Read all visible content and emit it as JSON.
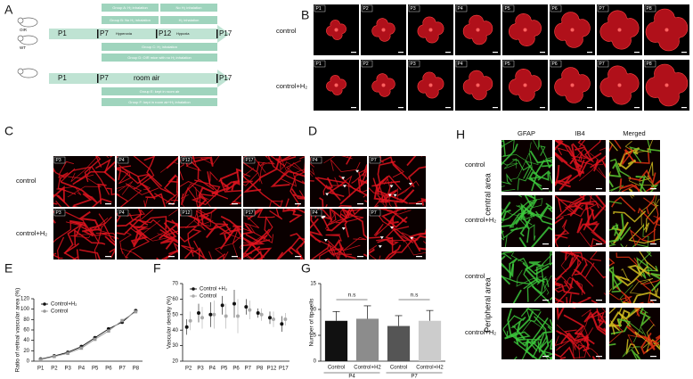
{
  "panel_labels": [
    "A",
    "B",
    "C",
    "D",
    "E",
    "F",
    "G",
    "H"
  ],
  "schematic": {
    "mice": [
      "OIR",
      "WT"
    ],
    "timeline1": [
      "P1",
      "P7",
      "P12",
      "P17"
    ],
    "phases": [
      "Hyperoxia",
      "Hypoxia"
    ],
    "boxes1": [
      "Group A: H₂ inhalation",
      "No H₂ inhalation",
      "Group B: No H₂ inhalation",
      "H₂ inhalation",
      "Group C: H₂ inhalation",
      "Group D: OIR mice with no H₂ inhalation"
    ],
    "timeline2": [
      "P1",
      "P7",
      "P17"
    ],
    "room_air": "room air",
    "boxes2": [
      "Group E: kept in room air",
      "Group F: kept in room air+H₂ inhalation"
    ]
  },
  "panel_b": {
    "rows": [
      "control",
      "control+H₂"
    ],
    "ages": [
      "P1",
      "P2",
      "P3",
      "P4",
      "P5",
      "P6",
      "P7",
      "P8"
    ]
  },
  "panel_c": {
    "rows": [
      "control",
      "control+H₂"
    ],
    "ages": [
      "P3",
      "P4",
      "P12",
      "P17"
    ]
  },
  "panel_d": {
    "ages": [
      "P4",
      "P7"
    ]
  },
  "panel_h": {
    "columns": [
      "GFAP",
      "IB4",
      "Merged"
    ],
    "rows": [
      "control",
      "control+H₂",
      "control",
      "control+H₂"
    ],
    "areas": [
      "central area",
      "Peripheral area"
    ]
  },
  "chart_data": [
    {
      "type": "line",
      "ylabel": "Ratio of retinal vascular area (%)",
      "categories": [
        "P1",
        "P2",
        "P3",
        "P4",
        "P5",
        "P6",
        "P7",
        "P8"
      ],
      "series": [
        {
          "name": "Control+H₂",
          "color": "#111111",
          "values": [
            4,
            10,
            17,
            28,
            45,
            62,
            75,
            97
          ]
        },
        {
          "name": "Control",
          "color": "#999999",
          "values": [
            3,
            9,
            15,
            25,
            42,
            58,
            78,
            95
          ]
        }
      ],
      "ylim": [
        0,
        120
      ],
      "yticks": [
        0,
        20,
        40,
        60,
        80,
        100,
        120
      ],
      "legend": "upper-left"
    },
    {
      "type": "dot",
      "ylabel": "Vascular density (%)",
      "categories": [
        "P2",
        "P3",
        "P4",
        "P5",
        "P6",
        "P7",
        "P8",
        "P12",
        "P17"
      ],
      "series": [
        {
          "name": "Control +H₂",
          "color": "#111111",
          "values": [
            42,
            51,
            50,
            56,
            57,
            55,
            51,
            48,
            44
          ],
          "errors": [
            5,
            6,
            8,
            6,
            9,
            5,
            3,
            4,
            5
          ]
        },
        {
          "name": "Control",
          "color": "#aaaaaa",
          "values": [
            46,
            48,
            50,
            49,
            49,
            53,
            50,
            47,
            47
          ],
          "errors": [
            6,
            7,
            9,
            8,
            11,
            6,
            4,
            5,
            4
          ]
        }
      ],
      "ylim": [
        20,
        70
      ],
      "yticks": [
        20,
        30,
        40,
        50,
        60,
        70
      ],
      "legend": "upper-left"
    },
    {
      "type": "bar",
      "ylabel": "Number of tip cells",
      "categories": [
        "Control",
        "Control+H2",
        "Control",
        "Control+H2"
      ],
      "values": [
        7.8,
        8.2,
        6.8,
        7.8
      ],
      "errors": [
        1.8,
        2.5,
        2.0,
        2.0
      ],
      "colors": [
        "#111111",
        "#8c8c8c",
        "#555555",
        "#cccccc"
      ],
      "groups": [
        "P4",
        "P7"
      ],
      "annotations": [
        "n.s",
        "n.s"
      ],
      "ylim": [
        0,
        15
      ],
      "yticks": [
        0,
        5,
        10,
        15
      ]
    }
  ]
}
